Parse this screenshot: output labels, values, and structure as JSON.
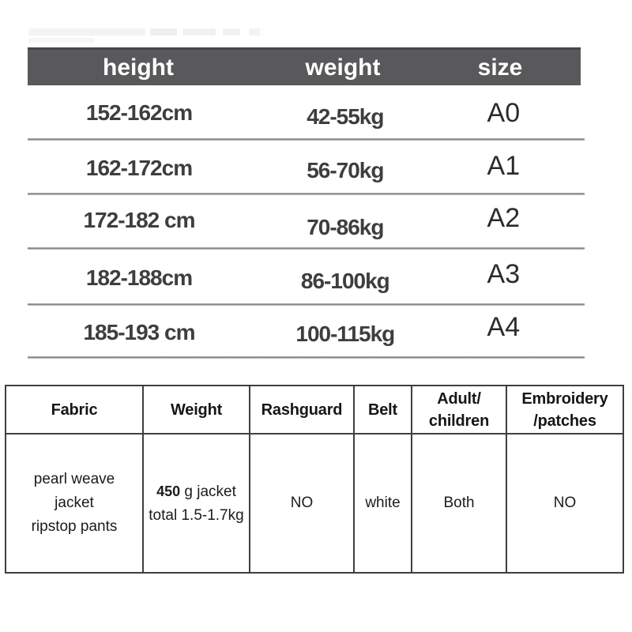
{
  "size_chart": {
    "header_bg": "#59595b",
    "header_text_color": "#ffffff",
    "columns": {
      "height": "height",
      "weight": "weight",
      "size": "size"
    },
    "rows": [
      {
        "height": "152-162cm",
        "weight": "42-55kg",
        "size": "A0"
      },
      {
        "height": "162-172cm",
        "weight": "56-70kg",
        "size": "A1"
      },
      {
        "height": "172-182 cm",
        "weight": "70-86kg",
        "size": "A2"
      },
      {
        "height": "182-188cm",
        "weight": "86-100kg",
        "size": "A3"
      },
      {
        "height": "185-193 cm",
        "weight": "100-115kg",
        "size": "A4"
      }
    ]
  },
  "spec_table": {
    "headers": {
      "fabric": "Fabric",
      "weight": "Weight",
      "rashguard": "Rashguard",
      "belt": "Belt",
      "adult_line1": "Adult/",
      "adult_line2": "children",
      "embroidery_line1": "Embroidery",
      "embroidery_line2": "/patches"
    },
    "row": {
      "fabric_line1": "pearl weave",
      "fabric_line2": "jacket",
      "fabric_line3": "ripstop pants",
      "weight_qty": "450",
      "weight_line1_rest": " g jacket",
      "weight_line2": "total 1.5-1.7kg",
      "rashguard": "NO",
      "belt": "white",
      "adult_children": "Both",
      "embroidery_patches": "NO"
    }
  }
}
